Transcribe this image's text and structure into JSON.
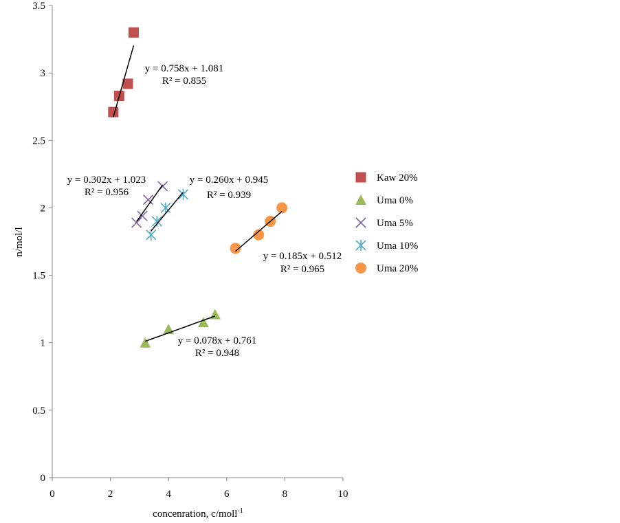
{
  "chart_data": {
    "type": "scatter",
    "title": "",
    "xlabel": "concenration, c/moll",
    "xlabel_sup": "-1",
    "ylabel": "n/mol/l",
    "xlim": [
      0,
      10
    ],
    "ylim": [
      0,
      3.5
    ],
    "xticks": [
      "0",
      "2",
      "4",
      "6",
      "8",
      "10"
    ],
    "yticks": [
      "0",
      "0.5",
      "1",
      "1.5",
      "2",
      "2.5",
      "3",
      "3.5"
    ],
    "grid": false,
    "legend_position": "right",
    "series": [
      {
        "name": "Kaw 20%",
        "marker": "square",
        "color": "#c0504d",
        "x": [
          2.1,
          2.3,
          2.6,
          2.8
        ],
        "y": [
          2.71,
          2.83,
          2.92,
          3.3
        ],
        "trend": {
          "slope": 0.758,
          "intercept": 1.081,
          "equation": "y = 0.758x + 1.081",
          "r2": "R² = 0.855"
        }
      },
      {
        "name": "Uma 0%",
        "marker": "triangle",
        "color": "#9bbb59",
        "x": [
          3.2,
          4.0,
          5.2,
          5.6
        ],
        "y": [
          1.0,
          1.1,
          1.15,
          1.21
        ],
        "trend": {
          "slope": 0.078,
          "intercept": 0.761,
          "equation": "y = 0.078x + 0.761",
          "r2": "R² = 0.948"
        }
      },
      {
        "name": "Uma 5%",
        "marker": "x",
        "color": "#8064a2",
        "x": [
          2.9,
          3.1,
          3.3,
          3.8
        ],
        "y": [
          1.89,
          1.94,
          2.06,
          2.16
        ],
        "trend": {
          "slope": 0.302,
          "intercept": 1.023,
          "equation": "y = 0.302x + 1.023",
          "r2": "R² = 0.956"
        }
      },
      {
        "name": "Uma 10%",
        "marker": "star",
        "color": "#4bacc6",
        "x": [
          3.4,
          3.6,
          3.9,
          4.5
        ],
        "y": [
          1.8,
          1.9,
          2.0,
          2.1
        ],
        "trend": {
          "slope": 0.26,
          "intercept": 0.945,
          "equation": "y = 0.260x + 0.945",
          "r2": "R² = 0.939"
        }
      },
      {
        "name": "Uma 20%",
        "marker": "circle",
        "color": "#f79646",
        "x": [
          6.3,
          7.1,
          7.5,
          7.9
        ],
        "y": [
          1.7,
          1.8,
          1.9,
          2.0
        ],
        "trend": {
          "slope": 0.185,
          "intercept": 0.512,
          "equation": "y = 0.185x + 0.512",
          "r2": "R² = 0.965"
        }
      }
    ]
  }
}
